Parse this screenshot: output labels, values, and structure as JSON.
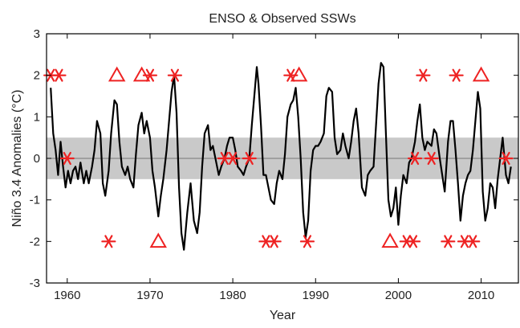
{
  "chart_data": {
    "type": "line",
    "title": "ENSO & Observed SSWs",
    "xlabel": "Year",
    "ylabel": "Niño 3.4 Anomalies (°C)",
    "xlim": [
      1957.5,
      2014.5
    ],
    "ylim": [
      -3,
      3
    ],
    "xticks": [
      1960,
      1970,
      1980,
      1990,
      2000,
      2010
    ],
    "yticks": [
      -3,
      -2,
      -1,
      0,
      1,
      2,
      3
    ],
    "shaded_band": [
      -0.5,
      0.5
    ],
    "grid": false,
    "colors": {
      "line": "#000000",
      "markers": "#ee2222",
      "band": "#c9c9c9"
    },
    "series": [
      {
        "type": "line",
        "x": [
          1958.0,
          1958.3,
          1958.6,
          1958.9,
          1959.2,
          1959.5,
          1959.8,
          1960.1,
          1960.4,
          1960.7,
          1961.0,
          1961.3,
          1961.6,
          1962.0,
          1962.3,
          1962.6,
          1963.0,
          1963.3,
          1963.6,
          1964.0,
          1964.3,
          1964.6,
          1965.0,
          1965.3,
          1965.7,
          1966.0,
          1966.3,
          1966.6,
          1967.0,
          1967.3,
          1967.6,
          1968.0,
          1968.3,
          1968.6,
          1969.0,
          1969.3,
          1969.6,
          1970.0,
          1970.3,
          1970.6,
          1971.0,
          1971.3,
          1971.6,
          1972.0,
          1972.3,
          1972.6,
          1972.9,
          1973.2,
          1973.5,
          1973.8,
          1974.1,
          1974.5,
          1974.9,
          1975.3,
          1975.7,
          1976.0,
          1976.3,
          1976.6,
          1977.0,
          1977.3,
          1977.6,
          1978.0,
          1978.3,
          1978.6,
          1979.0,
          1979.3,
          1979.6,
          1980.0,
          1980.3,
          1980.6,
          1981.0,
          1981.3,
          1981.6,
          1982.0,
          1982.3,
          1982.6,
          1982.9,
          1983.1,
          1983.4,
          1983.7,
          1984.0,
          1984.3,
          1984.6,
          1985.0,
          1985.3,
          1985.6,
          1986.0,
          1986.3,
          1986.6,
          1987.0,
          1987.3,
          1987.6,
          1987.9,
          1988.2,
          1988.5,
          1988.8,
          1989.1,
          1989.4,
          1989.7,
          1990.0,
          1990.3,
          1990.6,
          1991.0,
          1991.3,
          1991.6,
          1992.0,
          1992.3,
          1992.6,
          1993.0,
          1993.3,
          1993.6,
          1994.0,
          1994.3,
          1994.6,
          1994.9,
          1995.2,
          1995.6,
          1996.0,
          1996.3,
          1996.6,
          1997.0,
          1997.3,
          1997.6,
          1997.9,
          1998.2,
          1998.5,
          1998.8,
          1999.1,
          1999.4,
          1999.7,
          2000.0,
          2000.3,
          2000.6,
          2001.0,
          2001.3,
          2001.6,
          2002.0,
          2002.3,
          2002.6,
          2002.9,
          2003.2,
          2003.5,
          2004.0,
          2004.3,
          2004.6,
          2005.0,
          2005.3,
          2005.6,
          2006.0,
          2006.3,
          2006.6,
          2006.9,
          2007.2,
          2007.5,
          2007.8,
          2008.1,
          2008.4,
          2008.7,
          2009.0,
          2009.3,
          2009.6,
          2009.9,
          2010.2,
          2010.5,
          2010.8,
          2011.1,
          2011.4,
          2011.7,
          2012.0,
          2012.3,
          2012.6,
          2013.0,
          2013.3,
          2013.6
        ],
        "y": [
          1.7,
          0.6,
          0.2,
          -0.4,
          0.4,
          -0.2,
          -0.7,
          -0.3,
          -0.6,
          -0.3,
          -0.2,
          -0.5,
          -0.1,
          -0.6,
          -0.3,
          -0.6,
          -0.2,
          0.2,
          0.9,
          0.6,
          -0.6,
          -0.9,
          -0.3,
          0.6,
          1.4,
          1.3,
          0.4,
          -0.2,
          -0.4,
          -0.2,
          -0.5,
          -0.7,
          0.1,
          0.8,
          1.1,
          0.6,
          0.9,
          0.5,
          -0.3,
          -0.7,
          -1.4,
          -0.9,
          -0.5,
          0.2,
          0.9,
          1.6,
          2.0,
          1.1,
          -0.7,
          -1.8,
          -2.2,
          -1.3,
          -0.6,
          -1.5,
          -1.8,
          -1.3,
          -0.2,
          0.6,
          0.8,
          0.2,
          0.3,
          -0.1,
          -0.4,
          -0.2,
          0.0,
          0.3,
          0.5,
          0.5,
          0.2,
          -0.2,
          -0.3,
          -0.4,
          -0.2,
          0.0,
          0.8,
          1.5,
          2.2,
          1.8,
          0.8,
          -0.4,
          -0.4,
          -0.7,
          -1.0,
          -1.1,
          -0.6,
          -0.3,
          -0.5,
          0.1,
          1.0,
          1.3,
          1.4,
          1.7,
          1.0,
          0.0,
          -1.3,
          -1.9,
          -1.5,
          -0.3,
          0.2,
          0.3,
          0.3,
          0.4,
          0.6,
          1.5,
          1.7,
          1.6,
          0.5,
          0.1,
          0.2,
          0.6,
          0.3,
          0.0,
          0.4,
          0.9,
          1.2,
          0.6,
          -0.7,
          -0.9,
          -0.4,
          -0.3,
          -0.2,
          0.8,
          1.8,
          2.3,
          2.2,
          0.6,
          -1.0,
          -1.4,
          -1.2,
          -0.7,
          -1.6,
          -0.9,
          -0.4,
          -0.6,
          -0.1,
          0.0,
          0.4,
          0.9,
          1.3,
          0.5,
          0.2,
          0.4,
          0.3,
          0.7,
          0.6,
          0.0,
          -0.4,
          -0.8,
          0.4,
          0.9,
          0.9,
          0.2,
          -0.6,
          -1.5,
          -0.9,
          -0.6,
          -0.4,
          -0.3,
          0.2,
          0.9,
          1.6,
          1.2,
          -0.8,
          -1.5,
          -1.2,
          -0.6,
          -0.7,
          -1.2,
          -0.5,
          0.0,
          0.5,
          -0.4,
          -0.6,
          -0.2
        ]
      },
      {
        "type": "scatter",
        "marker": "asterisk",
        "x": [
          1958,
          1959,
          1960,
          1965,
          1970,
          1973,
          1979,
          1980,
          1982,
          1984,
          1985,
          1987,
          1989,
          2001,
          2001.8,
          2002,
          2003,
          2004,
          2006,
          2007,
          2008,
          2009,
          2013
        ],
        "y": [
          2,
          2,
          0,
          -2,
          2,
          2,
          0,
          0,
          0,
          -2,
          -2,
          2,
          -2,
          -2,
          -2,
          0,
          2,
          0,
          -2,
          2,
          -2,
          -2,
          0
        ]
      },
      {
        "type": "scatter",
        "marker": "triangle",
        "x": [
          1966,
          1969,
          1971,
          1988,
          1999,
          2010
        ],
        "y": [
          2,
          2,
          -2,
          2,
          -2,
          2
        ]
      }
    ]
  }
}
